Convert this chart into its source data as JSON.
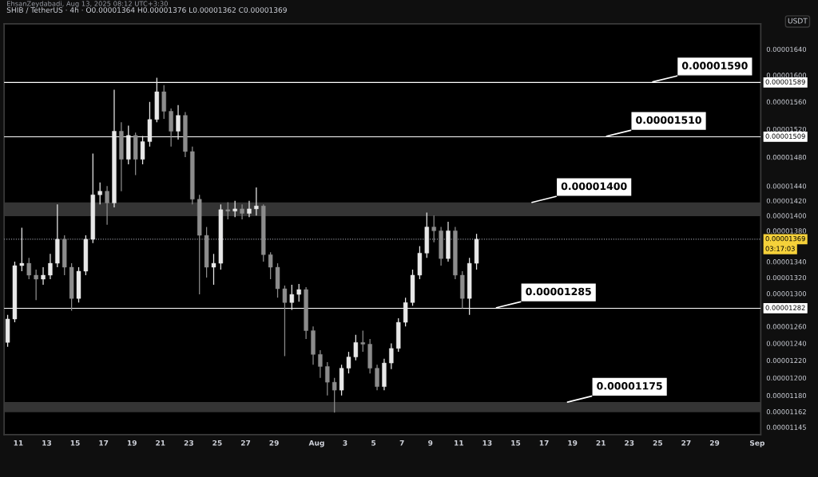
{
  "chart_data": {
    "type": "candlestick",
    "title": "SHIB / TetherUS · 4h · O0.00001364 H0.00001376 L0.00001362 C0.00001369",
    "ylabel": "USDT",
    "annotations": [
      "EhsanZeydabadi, Aug 13, 2025 08:12 UTC+3:30",
      {
        "text": "0.00001590",
        "x": "2025-08-24T12:00",
        "y": 1.589e-05
      },
      {
        "text": "0.00001510",
        "x": "2025-08-21T06:00",
        "y": 1.509e-05
      },
      {
        "text": "0.00001285",
        "x": "2025-08-13T12:00",
        "y": 1.282e-05
      },
      "03:17:03"
    ],
    "log": true,
    "grid": false,
    "x": [
      "2025-07-10T06:00",
      "2025-07-10T18:00",
      "2025-07-11T06:00",
      "2025-07-11T18:00",
      "2025-07-12T06:00",
      "2025-07-12T18:00",
      "2025-07-13T06:00",
      "2025-07-13T18:00",
      "2025-07-14T06:00",
      "2025-07-14T18:00",
      "2025-07-15T06:00",
      "2025-07-15T18:00",
      "2025-07-16T06:00",
      "2025-07-16T18:00",
      "2025-07-17T06:00",
      "2025-07-17T18:00",
      "2025-07-18T06:00",
      "2025-07-18T18:00",
      "2025-07-19T06:00",
      "2025-07-19T18:00",
      "2025-07-20T06:00",
      "2025-07-20T18:00",
      "2025-07-21T06:00",
      "2025-07-21T18:00",
      "2025-07-22T06:00",
      "2025-07-22T18:00",
      "2025-07-23T06:00",
      "2025-07-23T18:00",
      "2025-07-24T06:00",
      "2025-07-24T18:00",
      "2025-07-25T06:00",
      "2025-07-25T18:00",
      "2025-07-26T06:00",
      "2025-07-26T18:00",
      "2025-07-27T06:00",
      "2025-07-27T18:00",
      "2025-07-28T06:00",
      "2025-07-28T18:00",
      "2025-07-29T06:00",
      "2025-07-29T18:00",
      "2025-07-30T06:00",
      "2025-07-30T18:00",
      "2025-07-31T06:00",
      "2025-07-31T18:00",
      "2025-08-01T06:00",
      "2025-08-01T18:00",
      "2025-08-02T06:00",
      "2025-08-02T18:00",
      "2025-08-03T06:00",
      "2025-08-03T18:00",
      "2025-08-04T06:00",
      "2025-08-04T18:00",
      "2025-08-05T06:00",
      "2025-08-05T18:00",
      "2025-08-06T06:00",
      "2025-08-06T18:00",
      "2025-08-07T06:00",
      "2025-08-07T18:00",
      "2025-08-08T06:00",
      "2025-08-08T18:00",
      "2025-08-09T06:00",
      "2025-08-09T18:00",
      "2025-08-10T06:00",
      "2025-08-10T18:00",
      "2025-08-11T06:00",
      "2025-08-11T18:00",
      "2025-08-12T06:00"
    ],
    "series": [
      {
        "colors": [
          "#e8e8e8",
          "#e8e8e8",
          "#e8e8e8",
          "#8c8c8c",
          "#8c8c8c",
          "#e8e8e8",
          "#e8e8e8",
          "#e8e8e8",
          "#8c8c8c",
          "#8c8c8c",
          "#e8e8e8",
          "#e8e8e8",
          "#e8e8e8",
          "#e8e8e8",
          "#8c8c8c",
          "#e8e8e8",
          "#8c8c8c",
          "#e8e8e8",
          "#8c8c8c",
          "#e8e8e8",
          "#e8e8e8",
          "#e8e8e8",
          "#8c8c8c",
          "#8c8c8c",
          "#e8e8e8",
          "#8c8c8c",
          "#8c8c8c",
          "#8c8c8c",
          "#8c8c8c",
          "#e8e8e8",
          "#e8e8e8",
          "#8c8c8c",
          "#e8e8e8",
          "#8c8c8c",
          "#e8e8e8",
          "#e8e8e8",
          "#8c8c8c",
          "#8c8c8c",
          "#8c8c8c",
          "#8c8c8c",
          "#e8e8e8",
          "#e8e8e8",
          "#8c8c8c",
          "#8c8c8c",
          "#8c8c8c",
          "#8c8c8c",
          "#8c8c8c",
          "#e8e8e8",
          "#e8e8e8",
          "#e8e8e8",
          "#8c8c8c",
          "#8c8c8c",
          "#8c8c8c",
          "#e8e8e8",
          "#e8e8e8",
          "#e8e8e8",
          "#e8e8e8",
          "#e8e8e8",
          "#e8e8e8",
          "#e8e8e8",
          "#8c8c8c",
          "#8c8c8c",
          "#e8e8e8",
          "#8c8c8c",
          "#8c8c8c",
          "#e8e8e8",
          "#e8e8e8"
        ],
        "ohlc": [
          [
            1.241e-05,
            1.274e-05,
            1.236e-05,
            1.269e-05
          ],
          [
            1.269e-05,
            1.34e-05,
            1.265e-05,
            1.335e-05
          ],
          [
            1.335e-05,
            1.384e-05,
            1.328e-05,
            1.338e-05
          ],
          [
            1.338e-05,
            1.345e-05,
            1.318e-05,
            1.323e-05
          ],
          [
            1.323e-05,
            1.33e-05,
            1.292e-05,
            1.318e-05
          ],
          [
            1.318e-05,
            1.333e-05,
            1.311e-05,
            1.323e-05
          ],
          [
            1.323e-05,
            1.35e-05,
            1.318e-05,
            1.338e-05
          ],
          [
            1.338e-05,
            1.415e-05,
            1.333e-05,
            1.369e-05
          ],
          [
            1.369e-05,
            1.374e-05,
            1.323e-05,
            1.333e-05
          ],
          [
            1.333e-05,
            1.338e-05,
            1.279e-05,
            1.294e-05
          ],
          [
            1.294e-05,
            1.333e-05,
            1.289e-05,
            1.328e-05
          ],
          [
            1.328e-05,
            1.374e-05,
            1.323e-05,
            1.369e-05
          ],
          [
            1.369e-05,
            1.485e-05,
            1.364e-05,
            1.428e-05
          ],
          [
            1.428e-05,
            1.445e-05,
            1.415e-05,
            1.433e-05
          ],
          [
            1.433e-05,
            1.44e-05,
            1.388e-05,
            1.417e-05
          ],
          [
            1.417e-05,
            1.578e-05,
            1.411e-05,
            1.517e-05
          ],
          [
            1.517e-05,
            1.53e-05,
            1.433e-05,
            1.477e-05
          ],
          [
            1.477e-05,
            1.525e-05,
            1.47e-05,
            1.511e-05
          ],
          [
            1.511e-05,
            1.515e-05,
            1.455e-05,
            1.477e-05
          ],
          [
            1.477e-05,
            1.51e-05,
            1.47e-05,
            1.502e-05
          ],
          [
            1.502e-05,
            1.56e-05,
            1.495e-05,
            1.534e-05
          ],
          [
            1.534e-05,
            1.596e-05,
            1.53e-05,
            1.575e-05
          ],
          [
            1.575e-05,
            1.585e-05,
            1.535e-05,
            1.546e-05
          ],
          [
            1.546e-05,
            1.55e-05,
            1.495e-05,
            1.517e-05
          ],
          [
            1.517e-05,
            1.555e-05,
            1.505e-05,
            1.54e-05
          ],
          [
            1.54e-05,
            1.545e-05,
            1.48e-05,
            1.488e-05
          ],
          [
            1.488e-05,
            1.495e-05,
            1.415e-05,
            1.422e-05
          ],
          [
            1.422e-05,
            1.428e-05,
            1.299e-05,
            1.374e-05
          ],
          [
            1.374e-05,
            1.385e-05,
            1.32e-05,
            1.333e-05
          ],
          [
            1.333e-05,
            1.35e-05,
            1.311e-05,
            1.338e-05
          ],
          [
            1.338e-05,
            1.415e-05,
            1.33e-05,
            1.408e-05
          ],
          [
            1.408e-05,
            1.418e-05,
            1.395e-05,
            1.406e-05
          ],
          [
            1.406e-05,
            1.42e-05,
            1.398e-05,
            1.409e-05
          ],
          [
            1.409e-05,
            1.415e-05,
            1.395e-05,
            1.403e-05
          ],
          [
            1.403e-05,
            1.42e-05,
            1.398e-05,
            1.409e-05
          ],
          [
            1.409e-05,
            1.438e-05,
            1.4e-05,
            1.413e-05
          ],
          [
            1.413e-05,
            1.415e-05,
            1.34e-05,
            1.349e-05
          ],
          [
            1.349e-05,
            1.352e-05,
            1.318e-05,
            1.333e-05
          ],
          [
            1.333e-05,
            1.338e-05,
            1.295e-05,
            1.306e-05
          ],
          [
            1.306e-05,
            1.31e-05,
            1.225e-05,
            1.289e-05
          ],
          [
            1.289e-05,
            1.311e-05,
            1.28e-05,
            1.299e-05
          ],
          [
            1.299e-05,
            1.312e-05,
            1.29e-05,
            1.305e-05
          ],
          [
            1.305e-05,
            1.308e-05,
            1.245e-05,
            1.255e-05
          ],
          [
            1.255e-05,
            1.26e-05,
            1.215e-05,
            1.227e-05
          ],
          [
            1.227e-05,
            1.232e-05,
            1.2e-05,
            1.213e-05
          ],
          [
            1.213e-05,
            1.218e-05,
            1.18e-05,
            1.195e-05
          ],
          [
            1.195e-05,
            1.2e-05,
            1.161e-05,
            1.186e-05
          ],
          [
            1.186e-05,
            1.215e-05,
            1.18e-05,
            1.211e-05
          ],
          [
            1.211e-05,
            1.23e-05,
            1.205e-05,
            1.224e-05
          ],
          [
            1.224e-05,
            1.25e-05,
            1.22e-05,
            1.241e-05
          ],
          [
            1.241e-05,
            1.255e-05,
            1.23e-05,
            1.239e-05
          ],
          [
            1.239e-05,
            1.245e-05,
            1.205e-05,
            1.211e-05
          ],
          [
            1.211e-05,
            1.215e-05,
            1.186e-05,
            1.19e-05
          ],
          [
            1.19e-05,
            1.222e-05,
            1.186e-05,
            1.217e-05
          ],
          [
            1.217e-05,
            1.24e-05,
            1.21e-05,
            1.234e-05
          ],
          [
            1.234e-05,
            1.27e-05,
            1.23e-05,
            1.265e-05
          ],
          [
            1.265e-05,
            1.295e-05,
            1.26e-05,
            1.289e-05
          ],
          [
            1.289e-05,
            1.33e-05,
            1.285e-05,
            1.323e-05
          ],
          [
            1.323e-05,
            1.36e-05,
            1.318e-05,
            1.351e-05
          ],
          [
            1.351e-05,
            1.404e-05,
            1.345e-05,
            1.385e-05
          ],
          [
            1.385e-05,
            1.4e-05,
            1.365e-05,
            1.38e-05
          ],
          [
            1.38e-05,
            1.385e-05,
            1.335e-05,
            1.344e-05
          ],
          [
            1.344e-05,
            1.392e-05,
            1.34e-05,
            1.38e-05
          ],
          [
            1.38e-05,
            1.385e-05,
            1.318e-05,
            1.323e-05
          ],
          [
            1.323e-05,
            1.328e-05,
            1.282e-05,
            1.294e-05
          ],
          [
            1.294e-05,
            1.345e-05,
            1.274e-05,
            1.338e-05
          ],
          [
            1.338e-05,
            1.376e-05,
            1.33e-05,
            1.369e-05
          ]
        ]
      }
    ],
    "xlim": [
      "2025-07-10T00:00",
      "2025-09-01T06:00"
    ],
    "xticks": [
      {
        "value": "2025-07-11",
        "label": "11"
      },
      {
        "value": "2025-07-13",
        "label": "13"
      },
      {
        "value": "2025-07-15",
        "label": "15"
      },
      {
        "value": "2025-07-17",
        "label": "17"
      },
      {
        "value": "2025-07-19",
        "label": "19"
      },
      {
        "value": "2025-07-21",
        "label": "21"
      },
      {
        "value": "2025-07-23",
        "label": "23"
      },
      {
        "value": "2025-07-25",
        "label": "25"
      },
      {
        "value": "2025-07-27",
        "label": "27"
      },
      {
        "value": "2025-07-29",
        "label": "29"
      },
      {
        "value": "2025-08-01",
        "label": "Aug"
      },
      {
        "value": "2025-08-03",
        "label": "3"
      },
      {
        "value": "2025-08-05",
        "label": "5"
      },
      {
        "value": "2025-08-07",
        "label": "7"
      },
      {
        "value": "2025-08-09",
        "label": "9"
      },
      {
        "value": "2025-08-11",
        "label": "11"
      },
      {
        "value": "2025-08-13",
        "label": "13"
      },
      {
        "value": "2025-08-15",
        "label": "15"
      },
      {
        "value": "2025-08-17",
        "label": "17"
      },
      {
        "value": "2025-08-19",
        "label": "19"
      },
      {
        "value": "2025-08-21",
        "label": "21"
      },
      {
        "value": "2025-08-23",
        "label": "23"
      },
      {
        "value": "2025-08-25",
        "label": "25"
      },
      {
        "value": "2025-08-27",
        "label": "27"
      },
      {
        "value": "2025-08-29",
        "label": "29"
      },
      {
        "value": "2025-09-01",
        "label": "Sep"
      }
    ],
    "ylim": [
      1.137e-05,
      1.68e-05
    ],
    "yticks": [
      {
        "value": 1.64e-05,
        "label": "0.00001640"
      },
      {
        "value": 1.6e-05,
        "label": "0.00001600"
      },
      {
        "value": 1.56e-05,
        "label": "0.00001560"
      },
      {
        "value": 1.52e-05,
        "label": "0.00001520"
      },
      {
        "value": 1.48e-05,
        "label": "0.00001480"
      },
      {
        "value": 1.44e-05,
        "label": "0.00001440"
      },
      {
        "value": 1.42e-05,
        "label": "0.00001420"
      },
      {
        "value": 1.4e-05,
        "label": "0.00001400"
      },
      {
        "value": 1.38e-05,
        "label": "0.00001380"
      },
      {
        "value": 1.34e-05,
        "label": "0.00001340"
      },
      {
        "value": 1.32e-05,
        "label": "0.00001320"
      },
      {
        "value": 1.3e-05,
        "label": "0.00001300"
      },
      {
        "value": 1.26e-05,
        "label": "0.00001260"
      },
      {
        "value": 1.24e-05,
        "label": "0.00001240"
      },
      {
        "value": 1.22e-05,
        "label": "0.00001220"
      },
      {
        "value": 1.2e-05,
        "label": "0.00001200"
      },
      {
        "value": 1.18e-05,
        "label": "0.00001180"
      },
      {
        "value": 1.162e-05,
        "label": "0.00001162"
      },
      {
        "value": 1.145e-05,
        "label": "0.00001145"
      }
    ],
    "ref_lines": [
      {
        "axis": "y",
        "value": 1.589e-05,
        "label": "0.00001589",
        "color": "#ffffff",
        "line_style": "solid"
      },
      {
        "axis": "y",
        "value": 1.509e-05,
        "label": "0.00001509",
        "color": "#ffffff",
        "line_style": "solid"
      },
      {
        "axis": "y",
        "value": 1.282e-05,
        "label": "0.00001282",
        "color": "#ffffff",
        "line_style": "solid"
      },
      {
        "axis": "y",
        "value": 1.369e-05,
        "label": "0.00001369",
        "color": "#9598a1",
        "line_style": "dotted"
      }
    ],
    "bands": [
      {
        "axis": "y",
        "from": 1.4e-05,
        "to": 1.417e-05,
        "label": "0.00001400",
        "color": "#3a3a3a"
      },
      {
        "axis": "y",
        "from": 1.162e-05,
        "to": 1.172e-05,
        "label": "0.00001175",
        "color": "#3a3a3a"
      }
    ]
  }
}
